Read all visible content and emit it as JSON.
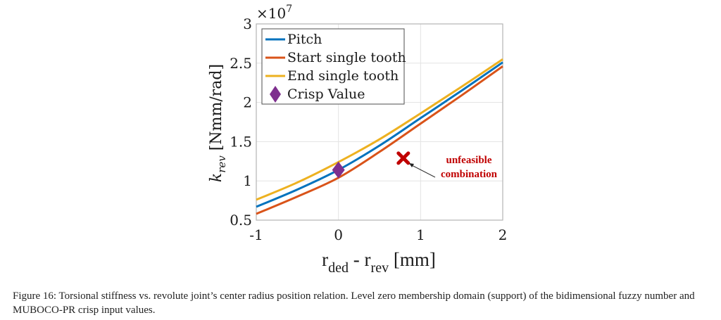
{
  "chart_data": {
    "type": "line",
    "title": "",
    "xlabel": {
      "main": "r",
      "sub1": "ded",
      "mid": " - r",
      "sub2": "rev",
      "unit": " [mm]"
    },
    "ylabel": {
      "symbol": "k",
      "sub": "rev",
      "unit": "[Nmm/rad]"
    },
    "y_multiplier": "×10",
    "y_multiplier_exp": "7",
    "xlim": [
      -1,
      2
    ],
    "ylim": [
      0.5,
      3
    ],
    "xticks": [
      -1,
      0,
      1,
      2
    ],
    "xtick_labels": [
      "-1",
      "0",
      "1",
      "2"
    ],
    "yticks": [
      0.5,
      1,
      1.5,
      2,
      2.5,
      3
    ],
    "ytick_labels": [
      "0.5",
      "1",
      "1.5",
      "2",
      "2.5",
      "3"
    ],
    "grid": true,
    "legend_position": "top-left",
    "x": [
      -1,
      -0.5,
      0,
      0.5,
      1,
      1.5,
      2
    ],
    "series": [
      {
        "name": "Pitch",
        "color": "#0072BD",
        "values": [
          0.67,
          0.89,
          1.14,
          1.45,
          1.8,
          2.15,
          2.51
        ]
      },
      {
        "name": "Start single tooth",
        "color": "#D95319",
        "values": [
          0.58,
          0.8,
          1.04,
          1.37,
          1.73,
          2.09,
          2.46
        ]
      },
      {
        "name": "End single tooth",
        "color": "#EDB120",
        "values": [
          0.76,
          0.98,
          1.24,
          1.53,
          1.86,
          2.2,
          2.55
        ]
      }
    ],
    "markers": [
      {
        "name": "Crisp Value",
        "shape": "diamond",
        "color": "#7E2F8E",
        "x": 0,
        "y": 1.14,
        "in_legend": true
      },
      {
        "name": "unfeasible-point",
        "shape": "x",
        "color": "#C00000",
        "x": 0.79,
        "y": 1.29,
        "in_legend": false
      }
    ],
    "annotations": [
      {
        "text_line1": "unfeasible",
        "text_line2": "combination",
        "color": "#C00000",
        "points_to": "unfeasible-point"
      }
    ]
  },
  "caption": "Figure 16: Torsional stiffness vs. revolute joint’s center radius position relation. Level zero membership domain (support) of the bidimensional fuzzy number and MUBOCO-PR crisp input values."
}
